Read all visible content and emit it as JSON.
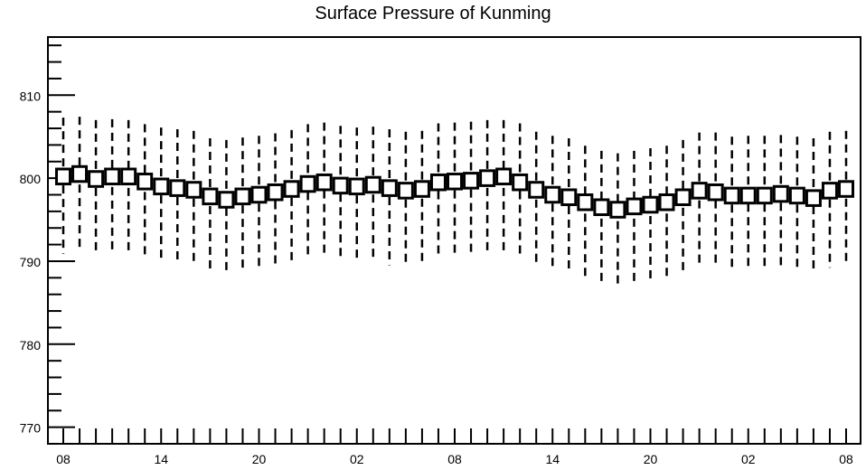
{
  "chart_data": {
    "type": "boxplot",
    "title": "Surface Pressure of Kunming",
    "xlabel": "",
    "ylabel": "",
    "ylim": [
      768,
      817
    ],
    "grid": false,
    "yticks": [
      {
        "value": 770,
        "label": "770"
      },
      {
        "value": 780,
        "label": "780"
      },
      {
        "value": 790,
        "label": "790"
      },
      {
        "value": 800,
        "label": "800"
      },
      {
        "value": 810,
        "label": "810"
      }
    ],
    "xticks": [
      {
        "index": 0,
        "label": "08"
      },
      {
        "index": 6,
        "label": "14"
      },
      {
        "index": 12,
        "label": "20"
      },
      {
        "index": 18,
        "label": "02"
      },
      {
        "index": 24,
        "label": "08"
      },
      {
        "index": 30,
        "label": "14"
      },
      {
        "index": 36,
        "label": "20"
      },
      {
        "index": 42,
        "label": "02"
      },
      {
        "index": 48,
        "label": "08"
      }
    ],
    "mid": [
      800.2,
      800.5,
      799.9,
      800.2,
      800.2,
      799.6,
      799.0,
      798.8,
      798.6,
      797.8,
      797.4,
      797.8,
      798.0,
      798.3,
      798.7,
      799.3,
      799.5,
      799.1,
      799.0,
      799.2,
      798.8,
      798.5,
      798.7,
      799.5,
      799.6,
      799.7,
      800.0,
      800.2,
      799.5,
      798.6,
      798.0,
      797.7,
      797.1,
      796.5,
      796.2,
      796.6,
      796.8,
      797.1,
      797.7,
      798.5,
      798.3,
      797.9,
      797.9,
      797.9,
      798.1,
      797.9,
      797.6,
      798.5,
      798.7
    ],
    "box_low": [
      799.3,
      799.6,
      799.0,
      799.3,
      799.3,
      798.7,
      798.1,
      797.9,
      797.7,
      796.9,
      796.5,
      796.9,
      797.1,
      797.4,
      797.8,
      798.4,
      798.6,
      798.2,
      798.1,
      798.3,
      797.9,
      797.6,
      797.8,
      798.6,
      798.7,
      798.8,
      799.1,
      799.3,
      798.6,
      797.7,
      797.1,
      796.8,
      796.2,
      795.6,
      795.3,
      795.7,
      795.9,
      796.2,
      796.8,
      797.6,
      797.4,
      797.0,
      797.0,
      797.0,
      797.2,
      797.0,
      796.7,
      797.6,
      797.8
    ],
    "box_high": [
      801.1,
      801.4,
      800.8,
      801.1,
      801.1,
      800.5,
      799.9,
      799.7,
      799.5,
      798.7,
      798.3,
      798.7,
      798.9,
      799.2,
      799.6,
      800.2,
      800.4,
      800.0,
      799.9,
      800.1,
      799.7,
      799.4,
      799.6,
      800.4,
      800.5,
      800.6,
      800.9,
      801.1,
      800.4,
      799.5,
      798.9,
      798.6,
      798.0,
      797.4,
      797.1,
      797.5,
      797.7,
      798.0,
      798.6,
      799.4,
      799.2,
      798.8,
      798.8,
      798.8,
      799.0,
      798.8,
      798.5,
      799.4,
      799.6
    ],
    "whisker_low": [
      790.9,
      791.2,
      790.9,
      791.0,
      790.9,
      790.4,
      790.0,
      789.8,
      789.6,
      788.8,
      788.6,
      788.9,
      789.0,
      789.2,
      789.6,
      790.3,
      790.5,
      790.1,
      789.9,
      790.0,
      789.5,
      789.3,
      789.4,
      790.4,
      790.5,
      790.5,
      790.8,
      790.9,
      790.5,
      789.6,
      789.0,
      788.8,
      788.0,
      787.6,
      787.3,
      787.6,
      787.8,
      788.0,
      788.7,
      789.4,
      789.3,
      788.9,
      788.9,
      788.9,
      789.0,
      788.8,
      788.5,
      789.2,
      789.4
    ],
    "whisker_high": [
      807.3,
      807.4,
      807.0,
      807.1,
      807.0,
      806.5,
      806.1,
      805.9,
      805.7,
      804.8,
      804.6,
      804.9,
      805.1,
      805.4,
      805.8,
      806.5,
      806.7,
      806.3,
      806.1,
      806.2,
      805.9,
      805.6,
      805.7,
      806.6,
      806.7,
      806.8,
      807.0,
      807.0,
      806.6,
      805.6,
      805.1,
      804.8,
      803.9,
      803.3,
      803.0,
      803.3,
      803.6,
      803.9,
      804.6,
      805.5,
      805.5,
      805.0,
      805.1,
      805.1,
      805.2,
      805.0,
      804.8,
      805.6,
      805.7
    ]
  }
}
